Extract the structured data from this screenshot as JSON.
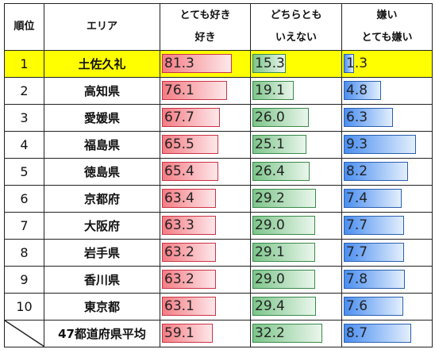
{
  "headers": {
    "rank": "順位",
    "area": "エリア",
    "like": [
      "とても好き",
      "好き"
    ],
    "neutral": [
      "どちらとも",
      "いえない"
    ],
    "dislike": [
      "嫌い",
      "とても嫌い"
    ]
  },
  "rows": [
    {
      "rank": "1",
      "area": "土佐久礼",
      "like": "81.3",
      "neutral": "15.3",
      "dislike": "1.3"
    },
    {
      "rank": "2",
      "area": "高知県",
      "like": "76.1",
      "neutral": "19.1",
      "dislike": "4.8"
    },
    {
      "rank": "3",
      "area": "愛媛県",
      "like": "67.7",
      "neutral": "26.0",
      "dislike": "6.3"
    },
    {
      "rank": "4",
      "area": "福島県",
      "like": "65.5",
      "neutral": "25.1",
      "dislike": "9.3"
    },
    {
      "rank": "5",
      "area": "徳島県",
      "like": "65.4",
      "neutral": "26.4",
      "dislike": "8.2"
    },
    {
      "rank": "6",
      "area": "京都府",
      "like": "63.4",
      "neutral": "29.2",
      "dislike": "7.4"
    },
    {
      "rank": "7",
      "area": "大阪府",
      "like": "63.3",
      "neutral": "29.0",
      "dislike": "7.7"
    },
    {
      "rank": "8",
      "area": "岩手県",
      "like": "63.2",
      "neutral": "29.1",
      "dislike": "7.7"
    },
    {
      "rank": "9",
      "area": "香川県",
      "like": "63.2",
      "neutral": "29.0",
      "dislike": "7.8"
    },
    {
      "rank": "10",
      "area": "東京都",
      "like": "63.1",
      "neutral": "29.4",
      "dislike": "7.6"
    }
  ],
  "average": {
    "area": "47都道府県平均",
    "like": "59.1",
    "neutral": "32.2",
    "dislike": "8.7"
  },
  "colors": {
    "highlight": "#ffff00",
    "like": "#f47c84",
    "neutral": "#7dc58a",
    "dislike": "#4a8ef0"
  }
}
